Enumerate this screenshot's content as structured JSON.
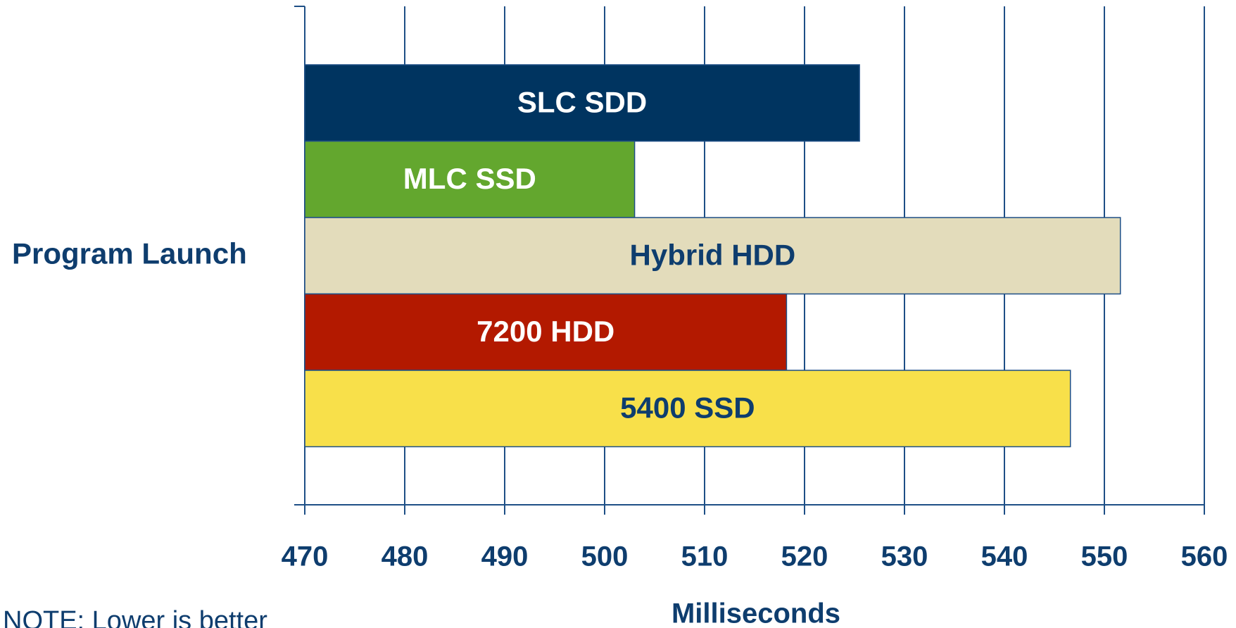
{
  "chart_data": {
    "type": "barh",
    "categories": [
      "Program Launch"
    ],
    "series": [
      {
        "name": "SLC SDD",
        "color": "#003460",
        "label_color": "#ffffff",
        "values": [
          525.5
        ]
      },
      {
        "name": "MLC SSD",
        "color": "#63a72e",
        "label_color": "#ffffff",
        "values": [
          503
        ]
      },
      {
        "name": "Hybrid HDD",
        "color": "#e3dcbb",
        "label_color": "#0e3d6e",
        "values": [
          551.6
        ]
      },
      {
        "name": "7200 HDD",
        "color": "#b31900",
        "label_color": "#ffffff",
        "values": [
          518.2
        ]
      },
      {
        "name": "5400 SSD",
        "color": "#f8e04a",
        "label_color": "#0e3d6e",
        "values": [
          546.6
        ]
      }
    ],
    "xlabel": "Milliseconds",
    "xlim": [
      470,
      560
    ],
    "xticks": [
      470,
      480,
      490,
      500,
      510,
      520,
      530,
      540,
      550,
      560
    ],
    "grid": true,
    "note": "NOTE: Lower is better"
  }
}
